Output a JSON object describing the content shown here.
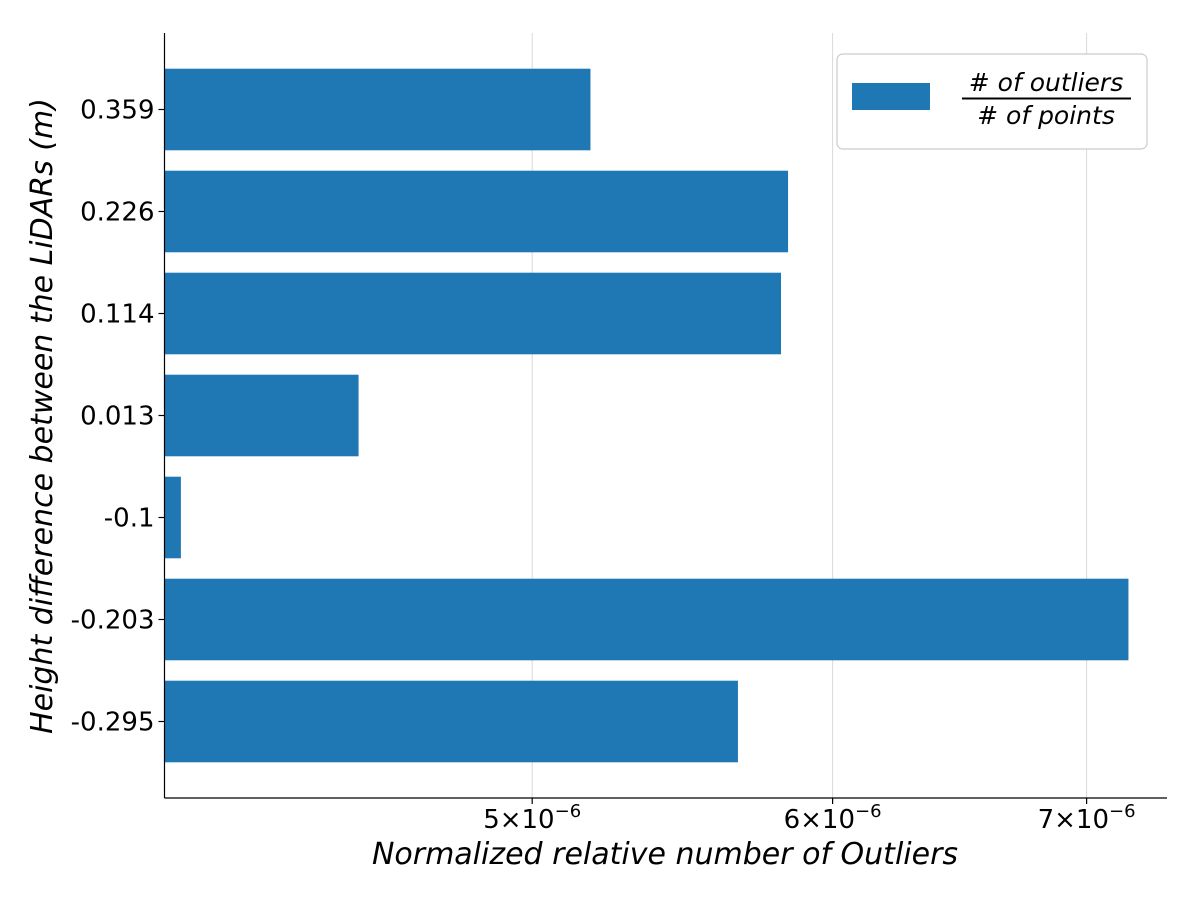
{
  "chart_data": {
    "type": "bar",
    "orientation": "horizontal",
    "categories": [
      "0.359",
      "0.226",
      "0.114",
      "0.013",
      "-0.1",
      "-0.203",
      "-0.295"
    ],
    "values": [
      5.18e-06,
      5.84e-06,
      5.815e-06,
      4.5e-06,
      4.04e-06,
      7.18e-06,
      5.665e-06
    ],
    "xlabel": "Normalized relative number of Outliers",
    "ylabel": "Height difference between the LiDARs (m)",
    "xscale": "log",
    "xlim": [
      4e-06,
      7.35e-06
    ],
    "xticks": [
      {
        "value": 5e-06,
        "mantissa": "5",
        "exponent": "−6"
      },
      {
        "value": 6e-06,
        "mantissa": "6",
        "exponent": "−6"
      },
      {
        "value": 7e-06,
        "mantissa": "7",
        "exponent": "−6"
      }
    ],
    "tick_times": "×",
    "tick_base": "10",
    "grid": {
      "x": true,
      "y": false
    },
    "legend": {
      "placement": "top-right",
      "numerator": "# of outliers",
      "denominator": "# of points"
    },
    "color": "#1f77b4"
  }
}
